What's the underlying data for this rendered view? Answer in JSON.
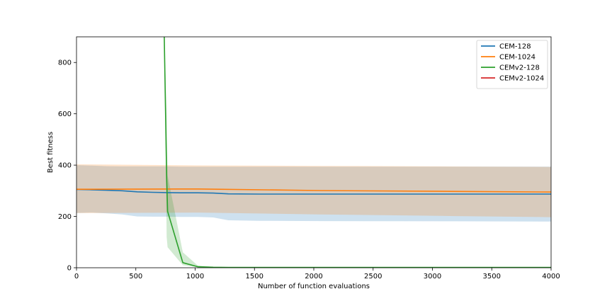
{
  "chart_data": {
    "type": "line",
    "xlabel": "Number of function evaluations",
    "ylabel": "Best fitness",
    "xlim": [
      0,
      4000
    ],
    "ylim": [
      0,
      900
    ],
    "xticks": [
      0,
      500,
      1000,
      1500,
      2000,
      2500,
      3000,
      3500,
      4000
    ],
    "yticks": [
      0,
      200,
      400,
      600,
      800
    ],
    "grid": false,
    "legend_position": "top-right",
    "series": [
      {
        "name": "CEM-128",
        "color": "#1f77b4",
        "x": [
          0,
          128,
          256,
          384,
          512,
          640,
          768,
          896,
          1024,
          1152,
          1280,
          1536,
          2048,
          3072,
          4000
        ],
        "y": [
          305,
          304,
          302,
          300,
          296,
          294,
          293,
          292,
          292,
          291,
          288,
          287,
          287,
          287,
          287
        ],
        "lower": [
          213,
          215,
          212,
          208,
          200,
          199,
          199,
          198,
          198,
          196,
          185,
          183,
          182,
          181,
          180
        ],
        "upper": [
          400,
          398,
          396,
          395,
          395,
          395,
          395,
          394,
          394,
          394,
          394,
          394,
          394,
          394,
          394
        ]
      },
      {
        "name": "CEM-1024",
        "color": "#ff7f0e",
        "x": [
          0,
          1024,
          2048,
          3072,
          4000
        ],
        "y": [
          306,
          307,
          301,
          298,
          295
        ],
        "lower": [
          213,
          215,
          208,
          202,
          197
        ],
        "upper": [
          403,
          399,
          397,
          395,
          393
        ]
      },
      {
        "name": "CEMv2-128",
        "color": "#2ca02c",
        "x": [
          690,
          740,
          760,
          768,
          896,
          1024,
          1152,
          1280,
          1536,
          2048,
          3072,
          4000
        ],
        "y": [
          1200,
          900,
          350,
          220,
          20,
          4,
          2,
          1.5,
          1.5,
          1.2,
          1,
          1
        ],
        "lower": [
          1200,
          900,
          120,
          80,
          10,
          2,
          1,
          0.5,
          0.5,
          0.5,
          0.5,
          0.5
        ],
        "upper": [
          1200,
          900,
          600,
          360,
          60,
          8,
          3,
          2.5,
          2.5,
          2,
          1.5,
          1.5
        ]
      },
      {
        "name": "CEMv2-1024",
        "color": "#d62728",
        "x": [],
        "y": [],
        "lower": [],
        "upper": []
      }
    ]
  }
}
